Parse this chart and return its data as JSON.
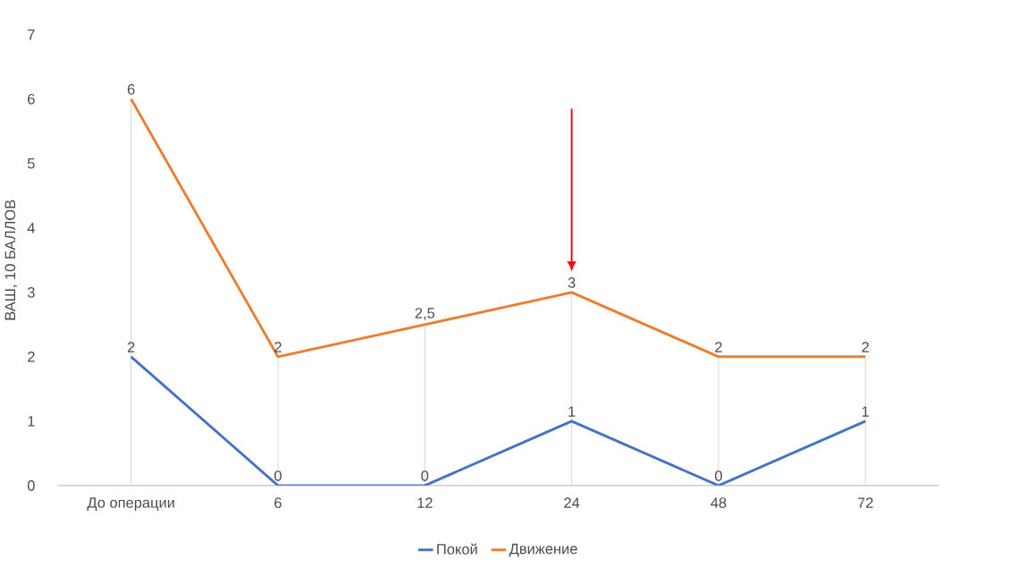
{
  "chart_data": {
    "type": "line",
    "ylabel": "ВАШ, 10 БАЛЛОВ",
    "categories": [
      "До операции",
      "6",
      "12",
      "24",
      "48",
      "72"
    ],
    "series": [
      {
        "name": "Покой",
        "color": "#4472c4",
        "values": [
          2,
          0,
          0,
          1,
          0,
          1
        ],
        "value_labels": [
          "2",
          "0",
          "0",
          "1",
          "0",
          "1"
        ]
      },
      {
        "name": "Движение",
        "color": "#ed7d31",
        "values": [
          6,
          2,
          2.5,
          3,
          2,
          2
        ],
        "value_labels": [
          "6",
          "2",
          "2,5",
          "3",
          "2",
          "2"
        ]
      }
    ],
    "ylim": [
      0,
      7
    ],
    "yticks": [
      0,
      1,
      2,
      3,
      4,
      5,
      6,
      7
    ],
    "grid": "x",
    "legend": "bottom",
    "marker": "none",
    "line_style": "solid"
  }
}
